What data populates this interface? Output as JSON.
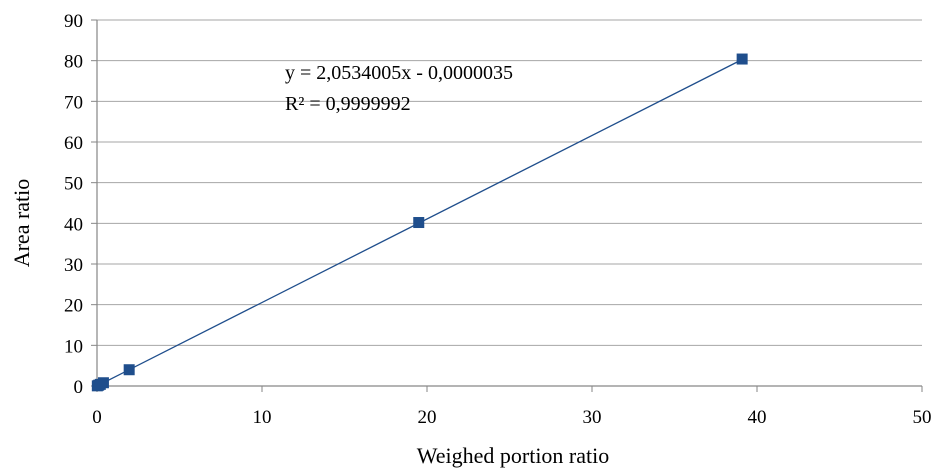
{
  "chart_data": {
    "type": "scatter",
    "title": "",
    "xlabel": "Weighed portion ratio",
    "ylabel": "Area ratio",
    "xlim": [
      0,
      50
    ],
    "ylim": [
      0,
      90
    ],
    "x_ticks": [
      0,
      10,
      20,
      30,
      40,
      50
    ],
    "y_ticks": [
      0,
      10,
      20,
      30,
      40,
      50,
      60,
      70,
      80,
      90
    ],
    "grid": "horizontal",
    "legend": "none",
    "series": [
      {
        "marker": "square",
        "color": "#1f4e8c",
        "points": [
          {
            "x": 0.02,
            "y": 0.04
          },
          {
            "x": 0.1,
            "y": 0.2
          },
          {
            "x": 0.2,
            "y": 0.4
          },
          {
            "x": 0.39,
            "y": 0.8
          },
          {
            "x": 1.95,
            "y": 4.0
          },
          {
            "x": 19.5,
            "y": 40.2
          },
          {
            "x": 39.1,
            "y": 80.4
          }
        ]
      }
    ],
    "trendline": {
      "type": "linear",
      "slope": 2.0534005,
      "intercept": -3.5e-06,
      "color": "#1f4e8c",
      "equation_text": "y = 2,0534005x - 0,0000035",
      "r2_text": "R² = 0,9999992"
    }
  }
}
